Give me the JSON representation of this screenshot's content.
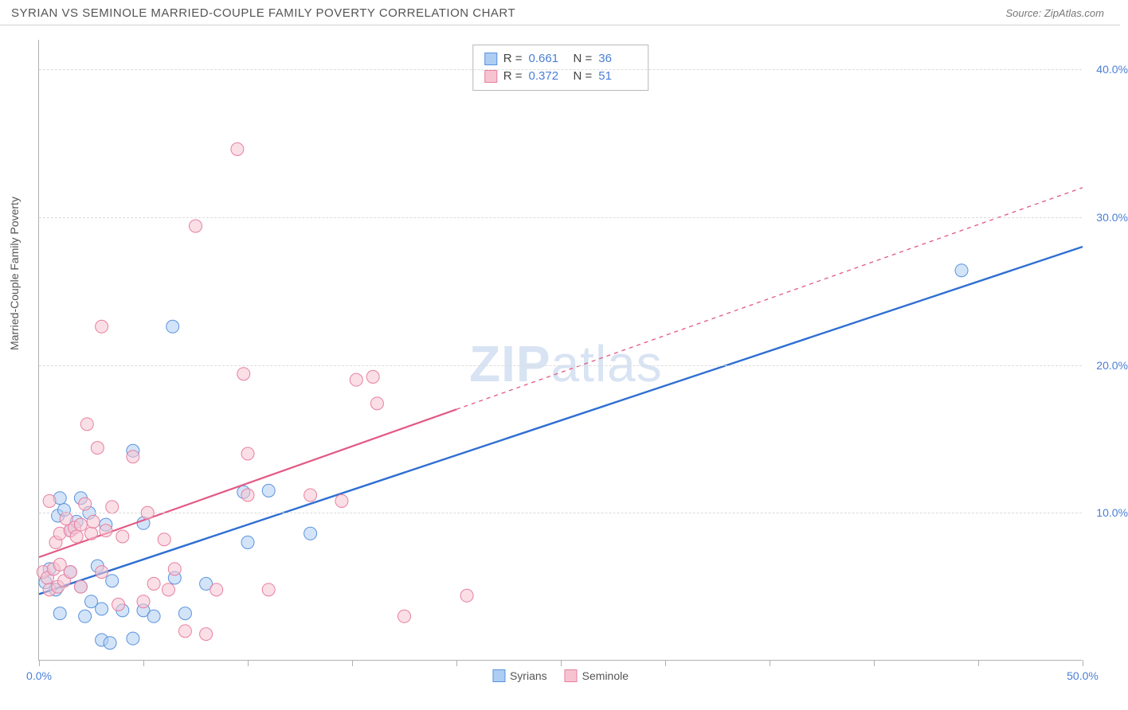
{
  "header": {
    "title": "SYRIAN VS SEMINOLE MARRIED-COUPLE FAMILY POVERTY CORRELATION CHART",
    "source_prefix": "Source: ",
    "source": "ZipAtlas.com"
  },
  "watermark": {
    "zip": "ZIP",
    "atlas": "atlas"
  },
  "chart": {
    "type": "scatter",
    "ylabel": "Married-Couple Family Poverty",
    "xlim": [
      0,
      50
    ],
    "ylim": [
      0,
      42
    ],
    "x_ticks": [
      0,
      5,
      10,
      15,
      20,
      25,
      30,
      35,
      40,
      45,
      50
    ],
    "x_tick_labels": {
      "0": "0.0%",
      "50": "50.0%"
    },
    "y_gridlines": [
      10,
      20,
      30,
      40
    ],
    "y_tick_labels": {
      "10": "10.0%",
      "20": "20.0%",
      "30": "30.0%",
      "40": "40.0%"
    },
    "background_color": "#ffffff",
    "grid_color": "#dcdcdc",
    "axis_color": "#b0b0b0",
    "tick_label_color": "#4a7fd6",
    "marker_radius": 8,
    "marker_opacity": 0.55,
    "series": [
      {
        "name": "Syrians",
        "color_fill": "#aecdf2",
        "color_stroke": "#5a93de",
        "R": "0.661",
        "N": "36",
        "trend": {
          "x1": 0,
          "y1": 4.5,
          "x2": 50,
          "y2": 28.0,
          "solid_until_x": 50,
          "stroke": "#2f6fd1",
          "width": 2.4
        },
        "points": [
          [
            0.3,
            5.3
          ],
          [
            0.5,
            6.2
          ],
          [
            0.8,
            4.8
          ],
          [
            0.9,
            9.8
          ],
          [
            1.0,
            3.2
          ],
          [
            1.0,
            11.0
          ],
          [
            1.2,
            10.2
          ],
          [
            1.5,
            6.0
          ],
          [
            1.5,
            8.8
          ],
          [
            1.8,
            9.4
          ],
          [
            2.0,
            5.0
          ],
          [
            2.0,
            11.0
          ],
          [
            2.2,
            3.0
          ],
          [
            2.4,
            10.0
          ],
          [
            2.5,
            4.0
          ],
          [
            2.8,
            6.4
          ],
          [
            3.0,
            1.4
          ],
          [
            3.0,
            3.5
          ],
          [
            3.2,
            9.2
          ],
          [
            3.4,
            1.2
          ],
          [
            3.5,
            5.4
          ],
          [
            4.0,
            3.4
          ],
          [
            4.5,
            14.2
          ],
          [
            4.5,
            1.5
          ],
          [
            5.0,
            3.4
          ],
          [
            5.0,
            9.3
          ],
          [
            5.5,
            3.0
          ],
          [
            6.4,
            22.6
          ],
          [
            6.5,
            5.6
          ],
          [
            7.0,
            3.2
          ],
          [
            8.0,
            5.2
          ],
          [
            9.8,
            11.4
          ],
          [
            10.0,
            8.0
          ],
          [
            11.0,
            11.5
          ],
          [
            13.0,
            8.6
          ],
          [
            44.2,
            26.4
          ]
        ]
      },
      {
        "name": "Seminole",
        "color_fill": "#f6c4d1",
        "color_stroke": "#e87fa0",
        "R": "0.372",
        "N": "51",
        "trend": {
          "x1": 0,
          "y1": 7.0,
          "x2": 50,
          "y2": 32.0,
          "solid_until_x": 20,
          "stroke": "#e35a85",
          "width": 2.2
        },
        "points": [
          [
            0.2,
            6.0
          ],
          [
            0.4,
            5.6
          ],
          [
            0.5,
            4.8
          ],
          [
            0.5,
            10.8
          ],
          [
            0.7,
            6.2
          ],
          [
            0.8,
            8.0
          ],
          [
            0.9,
            5.0
          ],
          [
            1.0,
            6.5
          ],
          [
            1.0,
            8.6
          ],
          [
            1.2,
            5.4
          ],
          [
            1.3,
            9.6
          ],
          [
            1.5,
            8.8
          ],
          [
            1.5,
            6.0
          ],
          [
            1.7,
            9.0
          ],
          [
            1.8,
            8.4
          ],
          [
            2.0,
            9.2
          ],
          [
            2.0,
            5.0
          ],
          [
            2.2,
            10.6
          ],
          [
            2.3,
            16.0
          ],
          [
            2.5,
            8.6
          ],
          [
            2.6,
            9.4
          ],
          [
            2.8,
            14.4
          ],
          [
            3.0,
            6.0
          ],
          [
            3.0,
            22.6
          ],
          [
            3.2,
            8.8
          ],
          [
            3.5,
            10.4
          ],
          [
            3.8,
            3.8
          ],
          [
            4.0,
            8.4
          ],
          [
            4.5,
            13.8
          ],
          [
            5.0,
            4.0
          ],
          [
            5.2,
            10.0
          ],
          [
            5.5,
            5.2
          ],
          [
            6.0,
            8.2
          ],
          [
            6.2,
            4.8
          ],
          [
            6.5,
            6.2
          ],
          [
            7.0,
            2.0
          ],
          [
            7.5,
            29.4
          ],
          [
            8.0,
            1.8
          ],
          [
            8.5,
            4.8
          ],
          [
            9.5,
            34.6
          ],
          [
            9.8,
            19.4
          ],
          [
            10.0,
            11.2
          ],
          [
            10.0,
            14.0
          ],
          [
            11.0,
            4.8
          ],
          [
            13.0,
            11.2
          ],
          [
            14.5,
            10.8
          ],
          [
            15.2,
            19.0
          ],
          [
            16.0,
            19.2
          ],
          [
            16.2,
            17.4
          ],
          [
            17.5,
            3.0
          ],
          [
            20.5,
            4.4
          ]
        ]
      }
    ]
  },
  "stat_legend": {
    "rows": [
      {
        "swatch_fill": "#aecdf2",
        "swatch_stroke": "#5a93de",
        "r_label": "R =",
        "r_val": "0.661",
        "n_label": "N =",
        "n_val": "36"
      },
      {
        "swatch_fill": "#f6c4d1",
        "swatch_stroke": "#e87fa0",
        "r_label": "R =",
        "r_val": "0.372",
        "n_label": "N =",
        "n_val": "51"
      }
    ]
  },
  "series_legend": {
    "items": [
      {
        "swatch_fill": "#aecdf2",
        "swatch_stroke": "#5a93de",
        "label": "Syrians"
      },
      {
        "swatch_fill": "#f6c4d1",
        "swatch_stroke": "#e87fa0",
        "label": "Seminole"
      }
    ]
  }
}
